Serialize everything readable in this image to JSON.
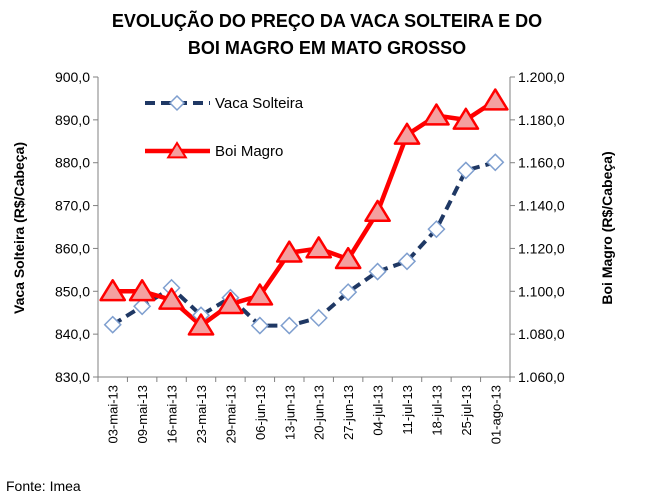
{
  "chart_data": {
    "type": "line",
    "title_lines": [
      "EVOLUÇÃO DO PREÇO DA VACA SOLTEIRA E DO",
      "BOI MAGRO EM MATO GROSSO"
    ],
    "categories": [
      "03-mai-13",
      "09-mai-13",
      "16-mai-13",
      "23-mai-13",
      "29-mai-13",
      "06-jun-13",
      "13-jun-13",
      "20-jun-13",
      "27-jun-13",
      "04-jul-13",
      "11-jul-13",
      "18-jul-13",
      "25-jul-13",
      "01-ago-13"
    ],
    "y_left": {
      "label": "Vaca  Solteira  (R$/Cabeça)",
      "min": 830,
      "max": 900,
      "ticks": [
        830,
        840,
        850,
        860,
        870,
        880,
        890,
        900
      ],
      "tick_labels": [
        "830,0",
        "840,0",
        "850,0",
        "860,0",
        "870,0",
        "880,0",
        "890,0",
        "900,0"
      ]
    },
    "y_right": {
      "label": "Boi  Magro  (R$/Cabeça)",
      "min": 1060,
      "max": 1200,
      "ticks": [
        1060,
        1080,
        1100,
        1120,
        1140,
        1160,
        1180,
        1200
      ],
      "tick_labels": [
        "1.060,0",
        "1.080,0",
        "1.100,0",
        "1.120,0",
        "1.140,0",
        "1.160,0",
        "1.180,0",
        "1.200,0"
      ]
    },
    "series": [
      {
        "name": "Vaca Solteira",
        "axis": "left",
        "color": "#1f3864",
        "marker": "diamond",
        "values": [
          842.2,
          846.5,
          850.8,
          844.4,
          848.5,
          842.0,
          842.0,
          843.8,
          849.8,
          854.6,
          857.0,
          864.5,
          878.2,
          880.1
        ]
      },
      {
        "name": "Boi Magro",
        "axis": "right",
        "color": "#ff0000",
        "marker": "triangle",
        "values": [
          1100.0,
          1100.0,
          1096.0,
          1084.0,
          1094.0,
          1098.0,
          1118.0,
          1120.0,
          1115.0,
          1137.0,
          1173.0,
          1182.0,
          1180.0,
          1189.0
        ]
      }
    ],
    "grid": false,
    "legend": "top-left"
  },
  "source": "Fonte: Imea"
}
